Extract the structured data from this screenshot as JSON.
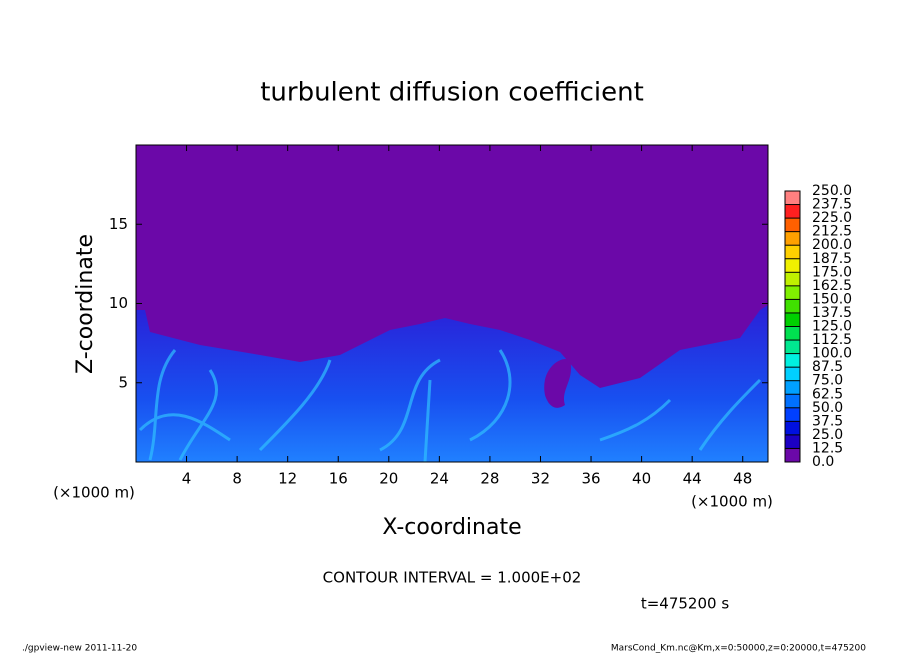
{
  "chart_data": {
    "type": "contour",
    "title": "turbulent diffusion coefficient",
    "xlabel": "X-coordinate",
    "ylabel": "Z-coordinate",
    "xunit": "(×1000 m)",
    "yunit": "(×1000 m)",
    "xlim": [
      0,
      50
    ],
    "ylim": [
      0,
      20
    ],
    "xticks": [
      4,
      8,
      12,
      16,
      20,
      24,
      28,
      32,
      36,
      40,
      44,
      48
    ],
    "yticks": [
      5,
      10,
      15
    ],
    "colorbar": {
      "levels": [
        {
          "value": 0,
          "label": "0.0"
        },
        {
          "value": 12.5,
          "label": "12.5"
        },
        {
          "value": 25,
          "label": "25.0"
        },
        {
          "value": 37.5,
          "label": "37.5"
        },
        {
          "value": 50,
          "label": "50.0"
        },
        {
          "value": 62.5,
          "label": "62.5"
        },
        {
          "value": 75,
          "label": "75.0"
        },
        {
          "value": 87.5,
          "label": "87.5"
        },
        {
          "value": 100,
          "label": "100.0"
        },
        {
          "value": 112.5,
          "label": "112.5"
        },
        {
          "value": 125,
          "label": "125.0"
        },
        {
          "value": 137.5,
          "label": "137.5"
        },
        {
          "value": 150,
          "label": "150.0"
        },
        {
          "value": 162.5,
          "label": "162.5"
        },
        {
          "value": 175,
          "label": "175.0"
        },
        {
          "value": 187.5,
          "label": "187.5"
        },
        {
          "value": 200,
          "label": "200.0"
        },
        {
          "value": 212.5,
          "label": "212.5"
        },
        {
          "value": 225,
          "label": "225.0"
        },
        {
          "value": 237.5,
          "label": "237.5"
        },
        {
          "value": 250,
          "label": "250.0"
        }
      ],
      "colors": [
        "#6b08a8",
        "#1c00c4",
        "#0010e0",
        "#0040ff",
        "#0070ff",
        "#00a0ff",
        "#00d0ff",
        "#00f0e0",
        "#00e890",
        "#00e050",
        "#00d000",
        "#40e000",
        "#80f000",
        "#c0f000",
        "#f0f000",
        "#ffd000",
        "#ffa000",
        "#ff6000",
        "#ff2020",
        "#ff8080"
      ]
    },
    "contour_interval": "CONTOUR INTERVAL = 1.000E+02",
    "time_label": "t=475200 s",
    "footer_left": "./gpview-new  2011-11-20",
    "footer_right": "MarsCond_Km.nc@Km,x=0:50000,z=0:20000,t=475200"
  }
}
